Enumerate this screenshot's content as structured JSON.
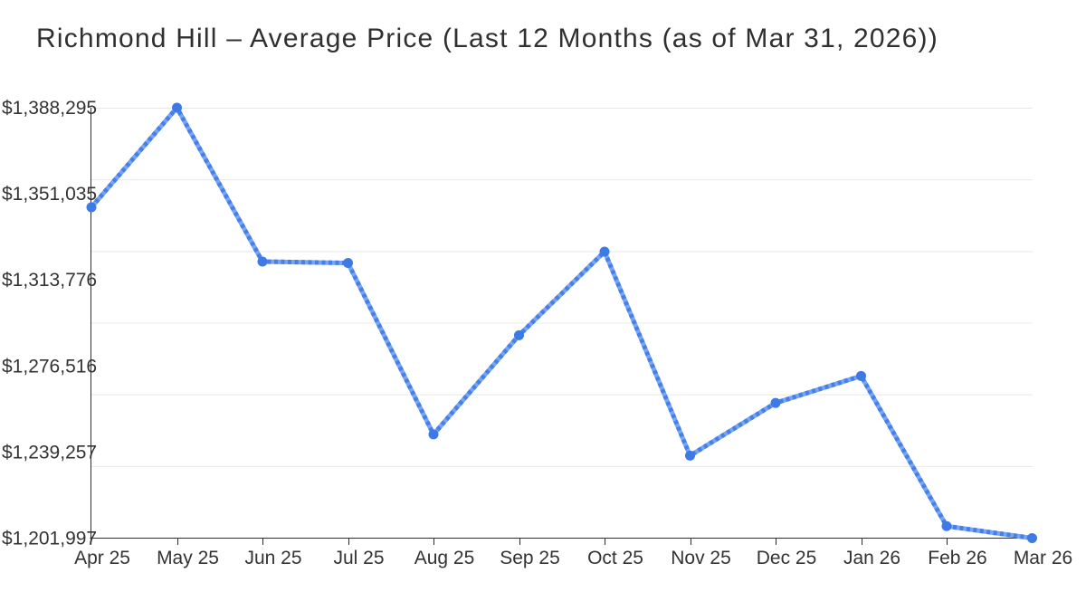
{
  "chart_data": {
    "type": "line",
    "title": "Richmond Hill – Average Price (Last 12 Months (as of Mar 31, 2026))",
    "xlabel": "",
    "ylabel": "",
    "legend_position": "none",
    "grid": "horizontal",
    "categories": [
      "Apr 25",
      "May 25",
      "Jun 25",
      "Jul 25",
      "Aug 25",
      "Sep 25",
      "Oct 25",
      "Nov 25",
      "Dec 25",
      "Jan 26",
      "Feb 26",
      "Mar 26"
    ],
    "series": [
      {
        "name": "Average Price",
        "values": [
          1345200,
          1388295,
          1321700,
          1321100,
          1246900,
          1289800,
          1326000,
          1237700,
          1260500,
          1272200,
          1207200,
          1201997
        ]
      }
    ],
    "ylim": [
      1201997,
      1388295
    ],
    "y_ticks": [
      {
        "label": "$1,388,295",
        "value": 1388295
      },
      {
        "label": "$1,351,035",
        "value": 1351035
      },
      {
        "label": "$1,313,776",
        "value": 1313776
      },
      {
        "label": "$1,276,516",
        "value": 1276516
      },
      {
        "label": "$1,239,257",
        "value": 1239257
      },
      {
        "label": "$1,201,997",
        "value": 1201997
      }
    ],
    "colors": {
      "line_base": "#7aa4f2",
      "line_dash": "#4480ea",
      "marker": "#3d7ae6",
      "grid": "#e8e8e8",
      "axis": "#2e2e2e",
      "tick_text": "#333333",
      "title_text": "#303030",
      "background": "#ffffff"
    }
  }
}
